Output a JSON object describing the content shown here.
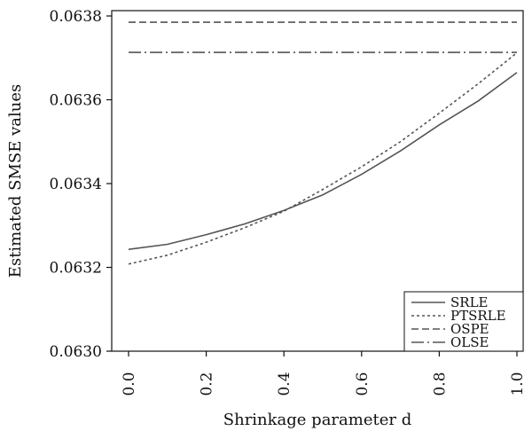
{
  "chart_data": {
    "type": "line",
    "title": "",
    "xlabel": "Shrinkage parameter d",
    "ylabel": "Estimated SMSE values",
    "xlim": [
      0,
      1
    ],
    "ylim": [
      0.063,
      0.0638
    ],
    "xticks": [
      "0.0",
      "0.2",
      "0.4",
      "0.6",
      "0.8",
      "1.0"
    ],
    "yticks": [
      "0.0630",
      "0.0632",
      "0.0634",
      "0.0636",
      "0.0638"
    ],
    "x": [
      0.0,
      0.1,
      0.2,
      0.3,
      0.4,
      0.5,
      0.6,
      0.7,
      0.8,
      0.9,
      1.0
    ],
    "series": [
      {
        "name": "SRLE",
        "style": "solid",
        "color": "#555555",
        "values": [
          0.063243,
          0.063255,
          0.063278,
          0.063304,
          0.063336,
          0.063373,
          0.063422,
          0.063478,
          0.06354,
          0.063597,
          0.063665
        ]
      },
      {
        "name": "PTSRLE",
        "style": "dotted",
        "color": "#555555",
        "values": [
          0.063208,
          0.063229,
          0.06326,
          0.063295,
          0.063334,
          0.063386,
          0.06344,
          0.0635,
          0.063568,
          0.063638,
          0.063712
        ]
      },
      {
        "name": "OSPE",
        "style": "dashed",
        "color": "#555555",
        "values": [
          0.063785,
          0.063785,
          0.063785,
          0.063785,
          0.063785,
          0.063785,
          0.063785,
          0.063785,
          0.063785,
          0.063785,
          0.063785
        ]
      },
      {
        "name": "OLSE",
        "style": "dashdot",
        "color": "#555555",
        "values": [
          0.063713,
          0.063713,
          0.063713,
          0.063713,
          0.063713,
          0.063713,
          0.063713,
          0.063713,
          0.063713,
          0.063713,
          0.063713
        ]
      }
    ],
    "legend_position": "bottom-right",
    "grid": false
  }
}
